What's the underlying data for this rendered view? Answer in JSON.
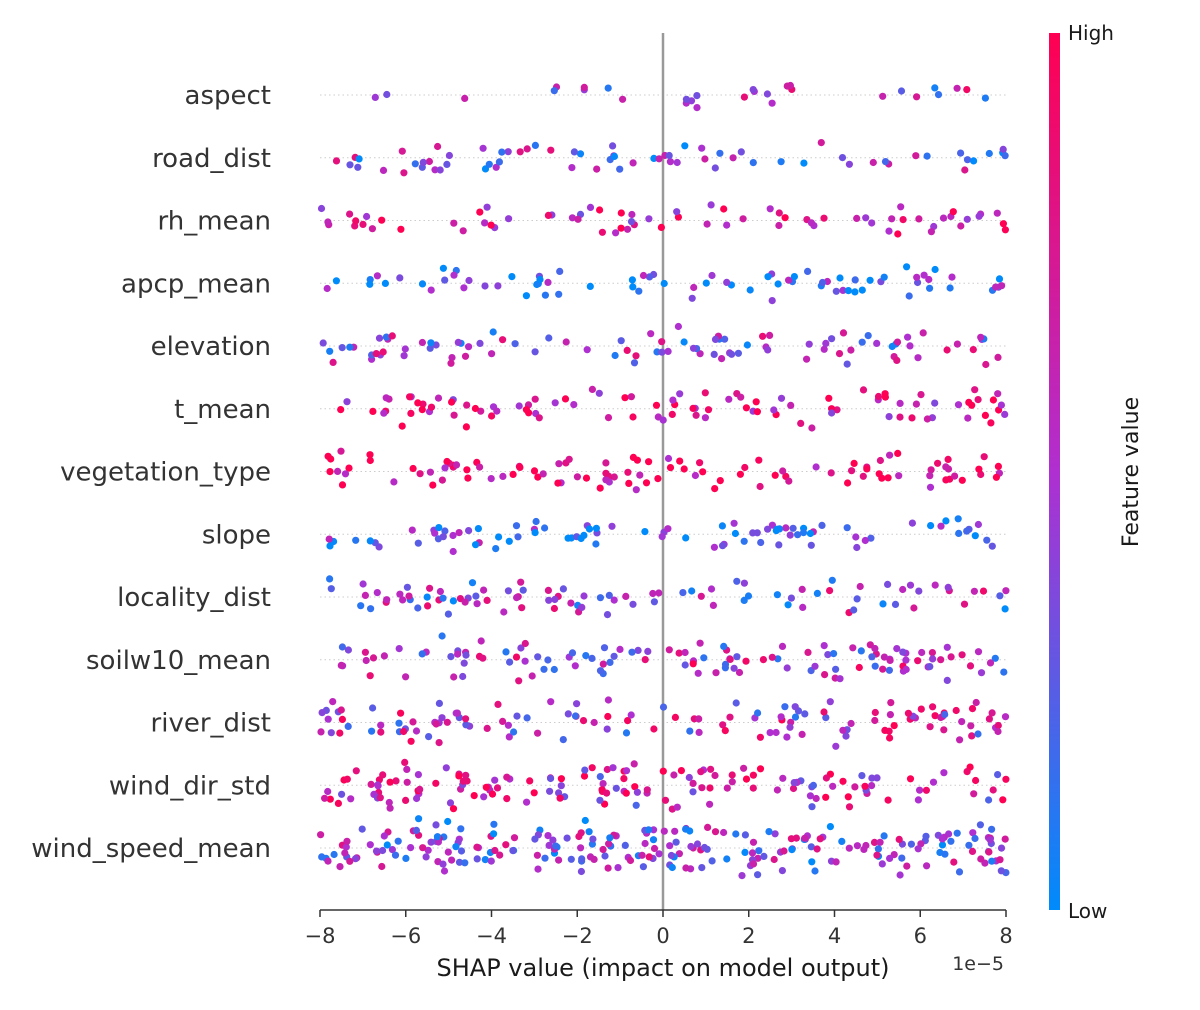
{
  "chart_data": {
    "type": "scatter",
    "subtype": "shap_beeswarm_summary",
    "xlabel": "SHAP value (impact on model output)",
    "x_offset_label": "1e−5",
    "xlim": [
      -8,
      8
    ],
    "x_ticks": [
      -8,
      -6,
      -4,
      -2,
      0,
      2,
      4,
      6,
      8
    ],
    "x_tick_labels": [
      "−8",
      "−6",
      "−4",
      "−2",
      "0",
      "2",
      "4",
      "6",
      "8"
    ],
    "x_unit_scale": 1e-05,
    "zero_line": true,
    "grid": false,
    "colorbar": {
      "title": "Feature value",
      "high_label": "High",
      "low_label": "Low",
      "high_color": "#ff0052",
      "mid_color": "#b02fd0",
      "low_color": "#008bfb",
      "placement": "right"
    },
    "features": [
      "aspect",
      "road_dist",
      "rh_mean",
      "apcp_mean",
      "elevation",
      "t_mean",
      "vegetation_type",
      "slope",
      "locality_dist",
      "soilw10_mean",
      "river_dist",
      "wind_dir_std",
      "wind_speed_mean"
    ],
    "points_per_feature": [
      30,
      70,
      72,
      78,
      95,
      100,
      108,
      90,
      95,
      125,
      130,
      155,
      245
    ],
    "value_distribution": "approximately uniform across x range; feature values (color) randomly mixed",
    "feature_color_bias": [
      0.5,
      0.4,
      0.75,
      0.15,
      0.45,
      0.8,
      0.92,
      0.2,
      0.45,
      0.55,
      0.55,
      0.65,
      0.4
    ]
  }
}
